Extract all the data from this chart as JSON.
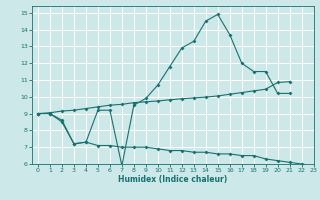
{
  "xlabel": "Humidex (Indice chaleur)",
  "bg_color": "#cce8e8",
  "grid_color": "#ffffff",
  "line_color": "#1a7070",
  "xlim": [
    -0.5,
    23
  ],
  "ylim": [
    6,
    15.4
  ],
  "xticks": [
    0,
    1,
    2,
    3,
    4,
    5,
    6,
    7,
    8,
    9,
    10,
    11,
    12,
    13,
    14,
    15,
    16,
    17,
    18,
    19,
    20,
    21,
    22,
    23
  ],
  "yticks": [
    6,
    7,
    8,
    9,
    10,
    11,
    12,
    13,
    14,
    15
  ],
  "line1_x": [
    0,
    1,
    2,
    3,
    4,
    5,
    6,
    7,
    8,
    9,
    10,
    11,
    12,
    13,
    14,
    15,
    16,
    17,
    18,
    19,
    20,
    21
  ],
  "line1_y": [
    9.0,
    9.0,
    8.5,
    7.2,
    7.3,
    9.2,
    9.2,
    5.9,
    9.5,
    9.9,
    10.7,
    11.8,
    12.9,
    13.3,
    14.5,
    14.9,
    13.7,
    12.0,
    11.5,
    11.5,
    10.2,
    10.2
  ],
  "line2_x": [
    0,
    1,
    2,
    3,
    4,
    5,
    6,
    7,
    8,
    9,
    10,
    11,
    12,
    13,
    14,
    15,
    16,
    17,
    18,
    19,
    20,
    21
  ],
  "line2_y": [
    9.0,
    9.05,
    9.15,
    9.2,
    9.3,
    9.4,
    9.5,
    9.55,
    9.65,
    9.7,
    9.75,
    9.82,
    9.88,
    9.93,
    9.98,
    10.05,
    10.15,
    10.25,
    10.35,
    10.45,
    10.85,
    10.9
  ],
  "line3_x": [
    0,
    1,
    2,
    3,
    4,
    5,
    6,
    7,
    8,
    9,
    10,
    11,
    12,
    13,
    14,
    15,
    16,
    17,
    18,
    19,
    20,
    21,
    22,
    23
  ],
  "line3_y": [
    9.0,
    9.0,
    8.6,
    7.2,
    7.3,
    7.1,
    7.1,
    7.0,
    7.0,
    7.0,
    6.9,
    6.8,
    6.8,
    6.7,
    6.7,
    6.6,
    6.6,
    6.5,
    6.5,
    6.3,
    6.2,
    6.1,
    6.0,
    5.9
  ]
}
